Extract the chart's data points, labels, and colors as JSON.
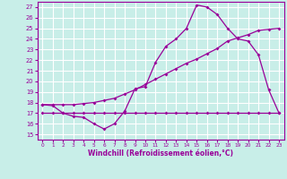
{
  "title": "",
  "xlabel": "Windchill (Refroidissement éolien,°C)",
  "ylabel": "",
  "bg_color": "#c8eee8",
  "grid_color": "#ffffff",
  "line_color": "#990099",
  "x_ticks": [
    0,
    1,
    2,
    3,
    4,
    5,
    6,
    7,
    8,
    9,
    10,
    11,
    12,
    13,
    14,
    15,
    16,
    17,
    18,
    19,
    20,
    21,
    22,
    23
  ],
  "y_ticks": [
    15,
    16,
    17,
    18,
    19,
    20,
    21,
    22,
    23,
    24,
    25,
    26,
    27
  ],
  "xlim": [
    -0.5,
    23.5
  ],
  "ylim": [
    14.5,
    27.5
  ],
  "line1_x": [
    0,
    1,
    2,
    3,
    4,
    5,
    6,
    7,
    8,
    9,
    10,
    11,
    12,
    13,
    14,
    15,
    16,
    17,
    18,
    19,
    20,
    21,
    22,
    23
  ],
  "line1_y": [
    17.8,
    17.7,
    17.0,
    16.7,
    16.6,
    16.0,
    15.5,
    16.0,
    17.2,
    19.3,
    19.5,
    21.8,
    23.3,
    24.0,
    25.0,
    27.2,
    27.0,
    26.3,
    25.0,
    24.0,
    23.8,
    22.5,
    19.2,
    17.0
  ],
  "line2_x": [
    0,
    1,
    2,
    3,
    4,
    5,
    6,
    7,
    8,
    9,
    10,
    11,
    12,
    13,
    14,
    15,
    16,
    17,
    18,
    19,
    20,
    21,
    22,
    23
  ],
  "line2_y": [
    17.8,
    17.8,
    17.8,
    17.8,
    17.9,
    18.0,
    18.2,
    18.4,
    18.8,
    19.2,
    19.7,
    20.2,
    20.7,
    21.2,
    21.7,
    22.1,
    22.6,
    23.1,
    23.8,
    24.1,
    24.4,
    24.8,
    24.9,
    25.0
  ],
  "line3_x": [
    0,
    1,
    2,
    3,
    4,
    5,
    6,
    7,
    8,
    9,
    10,
    11,
    12,
    13,
    14,
    15,
    16,
    17,
    18,
    19,
    20,
    21,
    22,
    23
  ],
  "line3_y": [
    17.0,
    17.0,
    17.0,
    17.0,
    17.0,
    17.0,
    17.0,
    17.0,
    17.0,
    17.0,
    17.0,
    17.0,
    17.0,
    17.0,
    17.0,
    17.0,
    17.0,
    17.0,
    17.0,
    17.0,
    17.0,
    17.0,
    17.0,
    17.0
  ]
}
